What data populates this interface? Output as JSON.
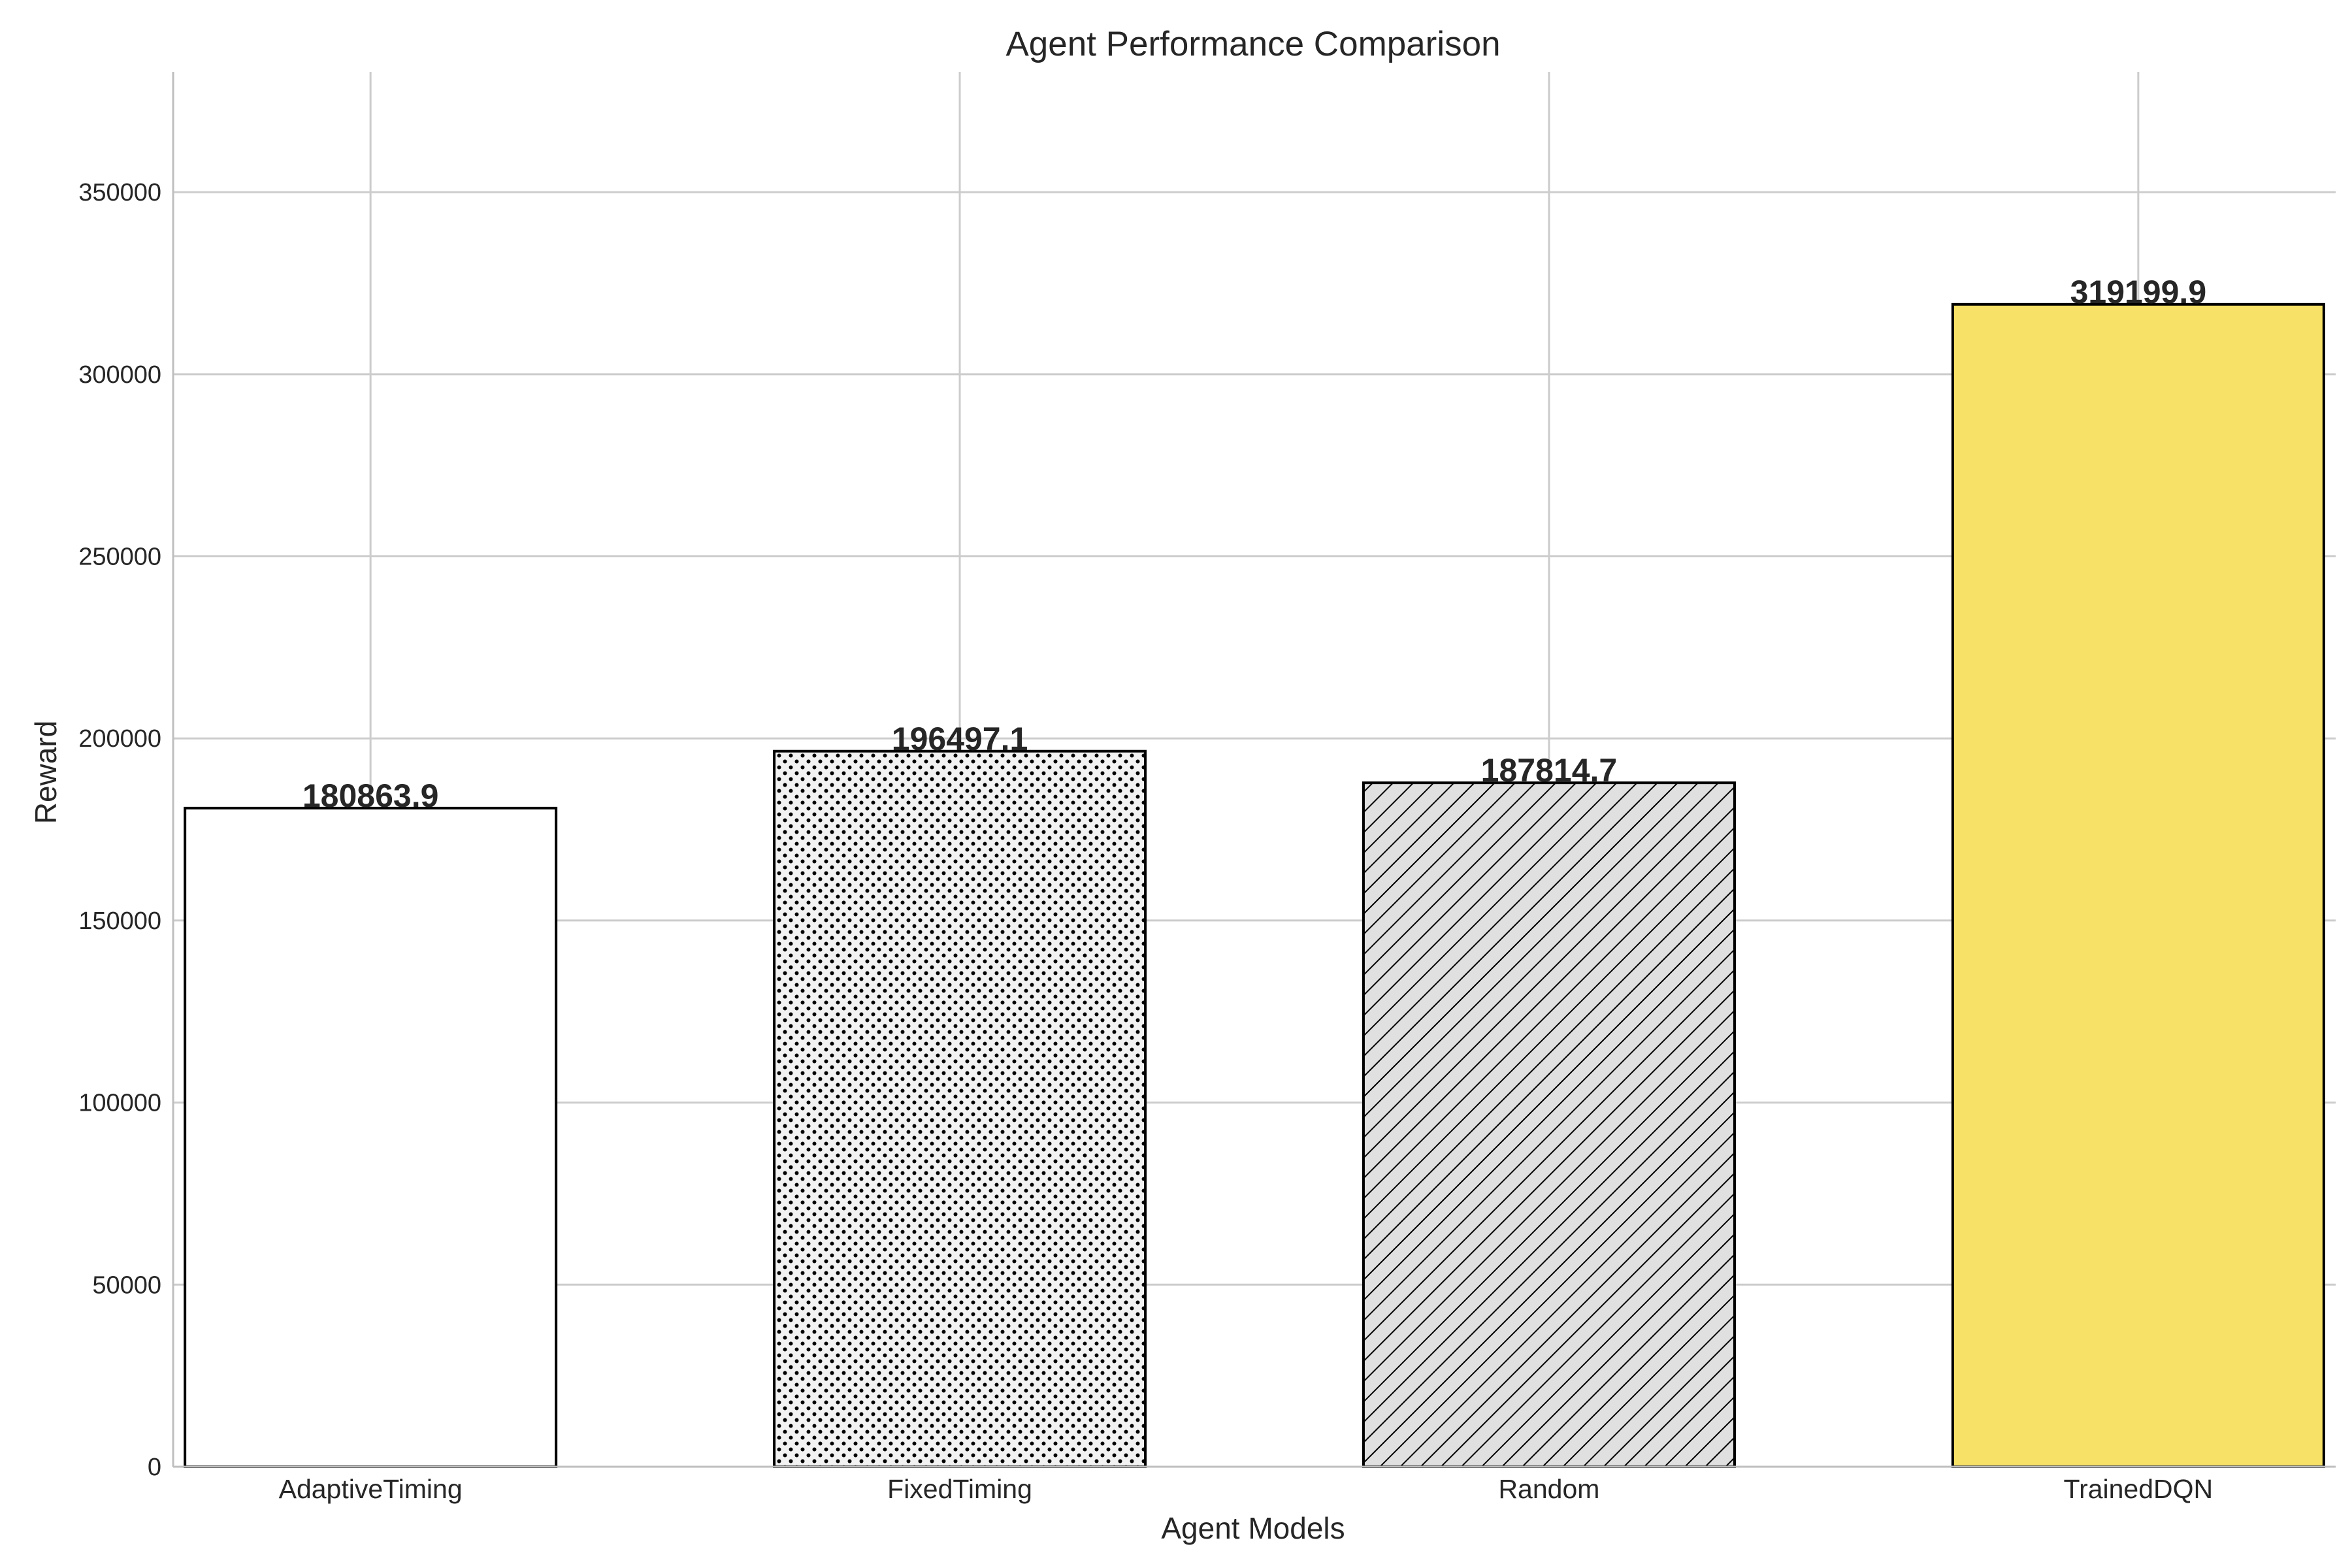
{
  "chart_data": {
    "type": "bar",
    "title": "Agent Performance Comparison",
    "xlabel": "Agent Models",
    "ylabel": "Reward",
    "categories": [
      "AdaptiveTiming",
      "FixedTiming",
      "Random",
      "TrainedDQN"
    ],
    "values": [
      180863.9,
      196497.1,
      187814.7,
      319199.9
    ],
    "value_labels": [
      "180863.9",
      "196497.1",
      "187814.7",
      "319199.9"
    ],
    "ylim": [
      0,
      383040
    ],
    "yticks": [
      0,
      50000,
      100000,
      150000,
      200000,
      250000,
      300000,
      350000
    ],
    "ytick_labels": [
      "0",
      "50000",
      "100000",
      "150000",
      "200000",
      "250000",
      "300000",
      "350000"
    ],
    "grid": true,
    "bar_styles": [
      {
        "fill": "#ffffff",
        "pattern": "none"
      },
      {
        "fill": "#f2f2f2",
        "pattern": "dots"
      },
      {
        "fill": "#e0e0e0",
        "pattern": "diagonal-hatch"
      },
      {
        "fill": "#f7e267",
        "pattern": "none"
      }
    ]
  }
}
